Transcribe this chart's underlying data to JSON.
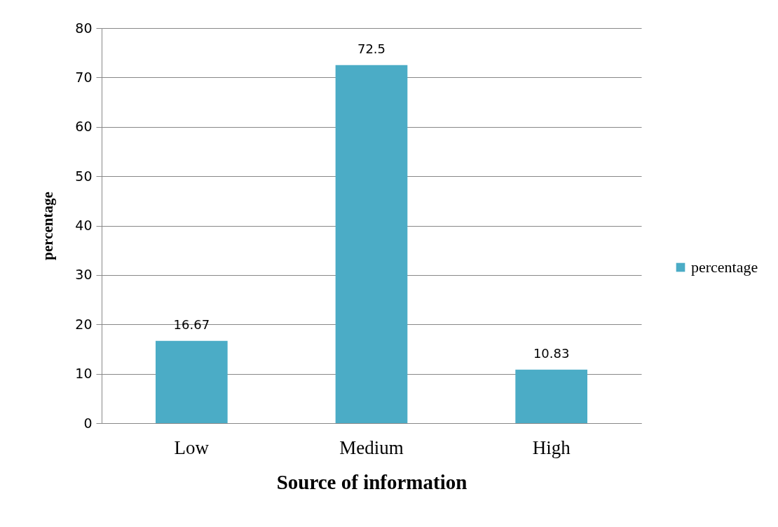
{
  "chart_data": {
    "type": "bar",
    "xlabel": "Source of information",
    "ylabel": "percentage",
    "categories": [
      "Low",
      "Medium",
      "High"
    ],
    "series": [
      {
        "name": "percentage",
        "color": "#4bacc6",
        "values": [
          16.67,
          72.5,
          10.83
        ]
      }
    ],
    "ylim": [
      0,
      80
    ],
    "yticks": [
      0,
      10,
      20,
      30,
      40,
      50,
      60,
      70,
      80
    ],
    "grid": "y",
    "legend": "right",
    "data_labels": true
  }
}
